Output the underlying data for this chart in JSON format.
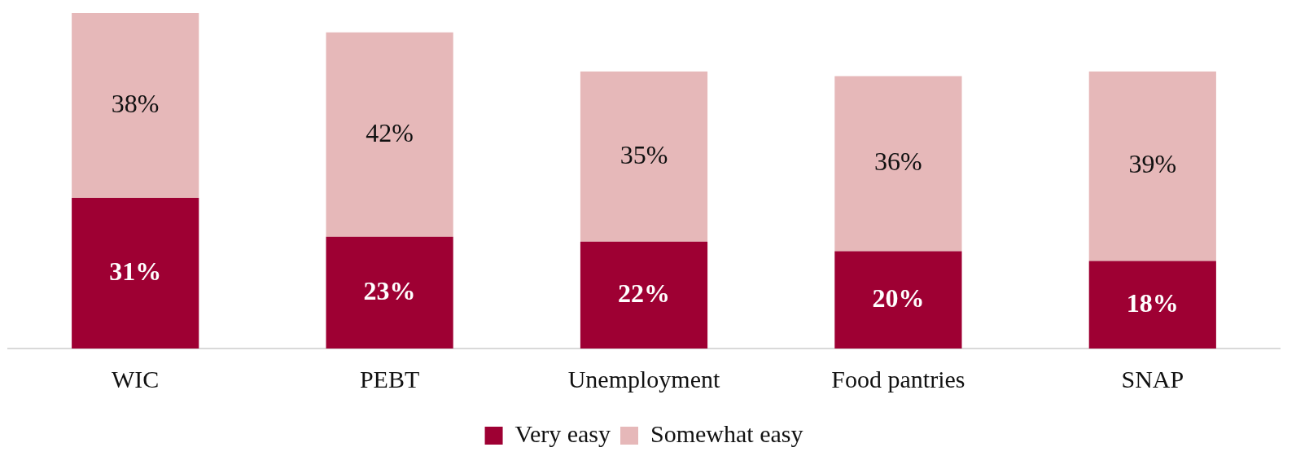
{
  "chart_data": {
    "type": "bar",
    "stacked": true,
    "categories": [
      "WIC",
      "PEBT",
      "Unemployment",
      "Food pantries",
      "SNAP"
    ],
    "series": [
      {
        "name": "Very easy",
        "color": "#9e0033",
        "values": [
          31,
          23,
          22,
          20,
          18
        ],
        "value_labels": [
          "31%",
          "23%",
          "22%",
          "20%",
          "18%"
        ]
      },
      {
        "name": "Somewhat easy",
        "color": "#e6b8b9",
        "values": [
          38,
          42,
          35,
          36,
          39
        ],
        "value_labels": [
          "38%",
          "42%",
          "35%",
          "36%",
          "39%"
        ]
      }
    ],
    "legend": "bottom",
    "grid": false
  }
}
